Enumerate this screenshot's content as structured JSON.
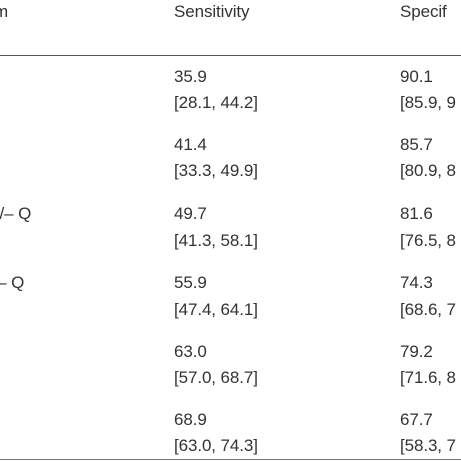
{
  "table": {
    "headers": {
      "label": "m",
      "sensitivity": "Sensitivity",
      "specificity": "Specif"
    },
    "rows": [
      {
        "label": "",
        "sens_value": "35.9",
        "sens_ci": "[28.1, 44.2]",
        "spec_value": "90.1",
        "spec_ci": "[85.9, 9"
      },
      {
        "label": "",
        "sens_value": "41.4",
        "sens_ci": "[33.3, 49.9]",
        "spec_value": "85.7",
        "spec_ci": "[80.9, 8"
      },
      {
        "label": "-/– Q",
        "sens_value": "49.7",
        "sens_ci": "[41.3, 58.1]",
        "spec_value": "81.6",
        "spec_ci": "[76.5, 8"
      },
      {
        "label": "′– Q",
        "sens_value": "55.9",
        "sens_ci": "[47.4, 64.1]",
        "spec_value": "74.3",
        "spec_ci": "[68.6, 7"
      },
      {
        "label": "",
        "sens_value": "63.0",
        "sens_ci": "[57.0, 68.7]",
        "spec_value": "79.2",
        "spec_ci": "[71.6, 8"
      },
      {
        "label": "",
        "sens_value": "68.9",
        "sens_ci": "[63.0, 74.3]",
        "spec_value": "67.7",
        "spec_ci": "[58.3, 7"
      }
    ]
  }
}
